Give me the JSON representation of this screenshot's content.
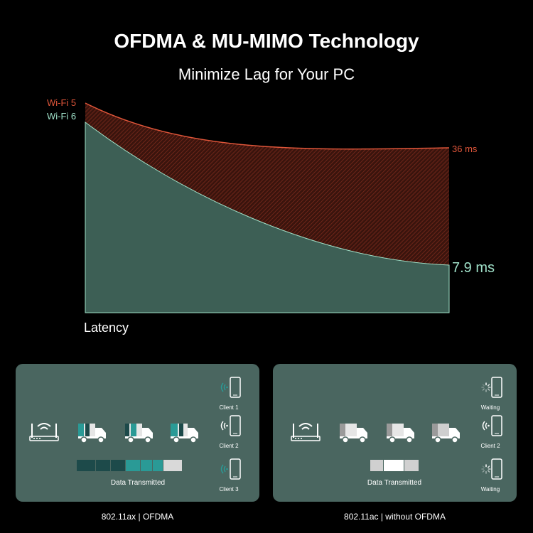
{
  "header": {
    "title": "OFDMA & MU-MIMO Technology",
    "subtitle": "Minimize Lag for Your PC"
  },
  "chart_data": {
    "type": "area",
    "xlabel": "Latency",
    "series": [
      {
        "name": "Wi-Fi 5",
        "end_label": "36 ms",
        "color": "#e0563a"
      },
      {
        "name": "Wi-Fi 6",
        "end_label": "7.9 ms",
        "color": "#9fe0c8"
      }
    ]
  },
  "panels": {
    "ofdma": {
      "caption": "802.11ax | OFDMA",
      "data_label": "Data Transmitted",
      "clients": [
        "Client 1",
        "Client 2",
        "Client 3"
      ]
    },
    "no_ofdma": {
      "caption": "802.11ac | without OFDMA",
      "data_label": "Data Transmitted",
      "clients": [
        "Waiting",
        "Client 2",
        "Waiting"
      ]
    }
  },
  "colors": {
    "background": "#000000",
    "panel": "#4a6660",
    "wifi5": "#e0563a",
    "wifi5_fill": "#5a2116",
    "wifi6": "#9fe0c8",
    "wifi6_fill": "#3d5f55",
    "teal": "#2a9a96",
    "dark_teal": "#1d4a4a"
  }
}
